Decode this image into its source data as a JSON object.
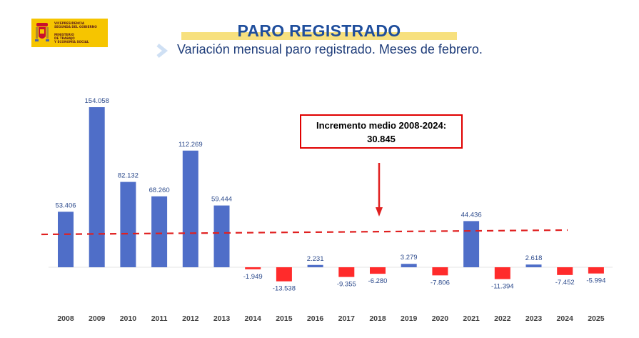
{
  "logo": {
    "line1": "Vicepresidencia",
    "line2": "Segunda del Gobierno",
    "line3": "Ministerio",
    "line4": "de Trabajo",
    "line5": "y Economía Social"
  },
  "header": {
    "title": "PARO REGISTRADO",
    "subtitle": "Variación mensual paro registrado. Meses de febrero."
  },
  "annotation": {
    "line1": "Incremento medio 2008-2024:",
    "line2": "30.845"
  },
  "colors": {
    "positive": "#4f6ec8",
    "negative": "#ff2b2b",
    "average_line": "#e02020",
    "arrow": "#e02020",
    "label": "#2c4a8c"
  },
  "chart_data": {
    "type": "bar",
    "title": "Variación mensual paro registrado. Meses de febrero.",
    "categories": [
      "2008",
      "2009",
      "2010",
      "2011",
      "2012",
      "2013",
      "2014",
      "2015",
      "2016",
      "2017",
      "2018",
      "2019",
      "2020",
      "2021",
      "2022",
      "2023",
      "2024",
      "2025"
    ],
    "values": [
      53406,
      154058,
      82132,
      68260,
      112269,
      59444,
      -1949,
      -13538,
      2231,
      -9355,
      -6280,
      3279,
      -7806,
      44436,
      -11394,
      2618,
      -7452,
      -5994
    ],
    "labels": [
      "53.406",
      "154.058",
      "82.132",
      "68.260",
      "112.269",
      "59.444",
      "-1.949",
      "-13.538",
      "2.231",
      "-9.355",
      "-6.280",
      "3.279",
      "-7.806",
      "44.436",
      "-11.394",
      "2.618",
      "-7.452",
      "-5.994"
    ],
    "average": 30845,
    "average_range": "2008-2024",
    "xlabel": "",
    "ylabel": ""
  }
}
